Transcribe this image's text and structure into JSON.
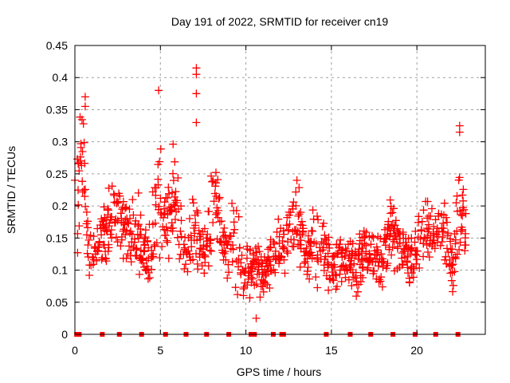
{
  "chart_data": {
    "type": "scatter",
    "title": "Day 191 of 2022, SRMTID for receiver cn19",
    "xlabel": "GPS time / hours",
    "ylabel": "SRMTID / TECUs",
    "xlim": [
      0,
      24
    ],
    "ylim": [
      0,
      0.45
    ],
    "xticks": [
      0,
      5,
      10,
      15,
      20
    ],
    "yticks": [
      0,
      0.05,
      0.1,
      0.15,
      0.2,
      0.25,
      0.3,
      0.35,
      0.4,
      0.45
    ],
    "ytick_labels": [
      "0",
      "0.05",
      "0.1",
      "0.15",
      "0.2",
      "0.25",
      "0.3",
      "0.35",
      "0.4",
      "0.45"
    ],
    "xtick_labels": [
      "0",
      "5",
      "10",
      "15",
      "20"
    ],
    "grid": true,
    "legend": "none",
    "marker": "+",
    "color": "#ff0000",
    "series": [
      {
        "name": "SRMTID",
        "profile": [
          {
            "t": 0.0,
            "center": 0.24,
            "spread": 0.0
          },
          {
            "t": 0.1,
            "center": 0.18,
            "spread": 0.08
          },
          {
            "t": 0.3,
            "center": 0.25,
            "spread": 0.12
          },
          {
            "t": 0.5,
            "center": 0.3,
            "spread": 0.08
          },
          {
            "t": 0.8,
            "center": 0.12,
            "spread": 0.04
          },
          {
            "t": 1.2,
            "center": 0.12,
            "spread": 0.03
          },
          {
            "t": 1.7,
            "center": 0.17,
            "spread": 0.06
          },
          {
            "t": 2.3,
            "center": 0.18,
            "spread": 0.06
          },
          {
            "t": 3.0,
            "center": 0.16,
            "spread": 0.06
          },
          {
            "t": 3.7,
            "center": 0.16,
            "spread": 0.06
          },
          {
            "t": 4.3,
            "center": 0.12,
            "spread": 0.05
          },
          {
            "t": 4.9,
            "center": 0.23,
            "spread": 0.1
          },
          {
            "t": 5.3,
            "center": 0.16,
            "spread": 0.07
          },
          {
            "t": 5.8,
            "center": 0.22,
            "spread": 0.08
          },
          {
            "t": 6.5,
            "center": 0.12,
            "spread": 0.05
          },
          {
            "t": 7.0,
            "center": 0.16,
            "spread": 0.08
          },
          {
            "t": 7.6,
            "center": 0.13,
            "spread": 0.05
          },
          {
            "t": 8.2,
            "center": 0.2,
            "spread": 0.08
          },
          {
            "t": 8.8,
            "center": 0.13,
            "spread": 0.05
          },
          {
            "t": 9.4,
            "center": 0.15,
            "spread": 0.08
          },
          {
            "t": 9.9,
            "center": 0.1,
            "spread": 0.05
          },
          {
            "t": 10.5,
            "center": 0.11,
            "spread": 0.04
          },
          {
            "t": 11.0,
            "center": 0.09,
            "spread": 0.04
          },
          {
            "t": 11.6,
            "center": 0.12,
            "spread": 0.05
          },
          {
            "t": 12.3,
            "center": 0.14,
            "spread": 0.05
          },
          {
            "t": 12.9,
            "center": 0.18,
            "spread": 0.07
          },
          {
            "t": 13.6,
            "center": 0.13,
            "spread": 0.05
          },
          {
            "t": 14.3,
            "center": 0.15,
            "spread": 0.07
          },
          {
            "t": 15.0,
            "center": 0.1,
            "spread": 0.04
          },
          {
            "t": 15.7,
            "center": 0.12,
            "spread": 0.04
          },
          {
            "t": 16.4,
            "center": 0.11,
            "spread": 0.05
          },
          {
            "t": 17.1,
            "center": 0.13,
            "spread": 0.05
          },
          {
            "t": 17.8,
            "center": 0.11,
            "spread": 0.05
          },
          {
            "t": 18.4,
            "center": 0.17,
            "spread": 0.06
          },
          {
            "t": 19.1,
            "center": 0.14,
            "spread": 0.05
          },
          {
            "t": 19.7,
            "center": 0.11,
            "spread": 0.05
          },
          {
            "t": 20.3,
            "center": 0.15,
            "spread": 0.06
          },
          {
            "t": 21.0,
            "center": 0.15,
            "spread": 0.05
          },
          {
            "t": 21.7,
            "center": 0.17,
            "spread": 0.06
          },
          {
            "t": 22.1,
            "center": 0.1,
            "spread": 0.04
          },
          {
            "t": 22.5,
            "center": 0.22,
            "spread": 0.09
          },
          {
            "t": 22.8,
            "center": 0.15,
            "spread": 0.05
          }
        ],
        "time_range_hours": [
          0.0,
          22.9
        ],
        "highlight_points": [
          {
            "x": 7.1,
            "y": 0.415
          },
          {
            "x": 7.1,
            "y": 0.405
          },
          {
            "x": 7.1,
            "y": 0.375
          },
          {
            "x": 7.1,
            "y": 0.33
          },
          {
            "x": 4.9,
            "y": 0.38
          },
          {
            "x": 0.6,
            "y": 0.37
          },
          {
            "x": 0.6,
            "y": 0.355
          },
          {
            "x": 22.5,
            "y": 0.325
          },
          {
            "x": 22.5,
            "y": 0.315
          },
          {
            "x": 10.6,
            "y": 0.025
          },
          {
            "x": 0.0,
            "y": 0.24
          }
        ],
        "zero_points_x": [
          0.1,
          0.25,
          1.6,
          2.6,
          3.9,
          5.3,
          6.5,
          7.7,
          9.0,
          10.3,
          10.5,
          11.6,
          12.1,
          12.2,
          14.7,
          16.1,
          17.3,
          18.6,
          19.9,
          21.1,
          22.4
        ]
      }
    ]
  }
}
